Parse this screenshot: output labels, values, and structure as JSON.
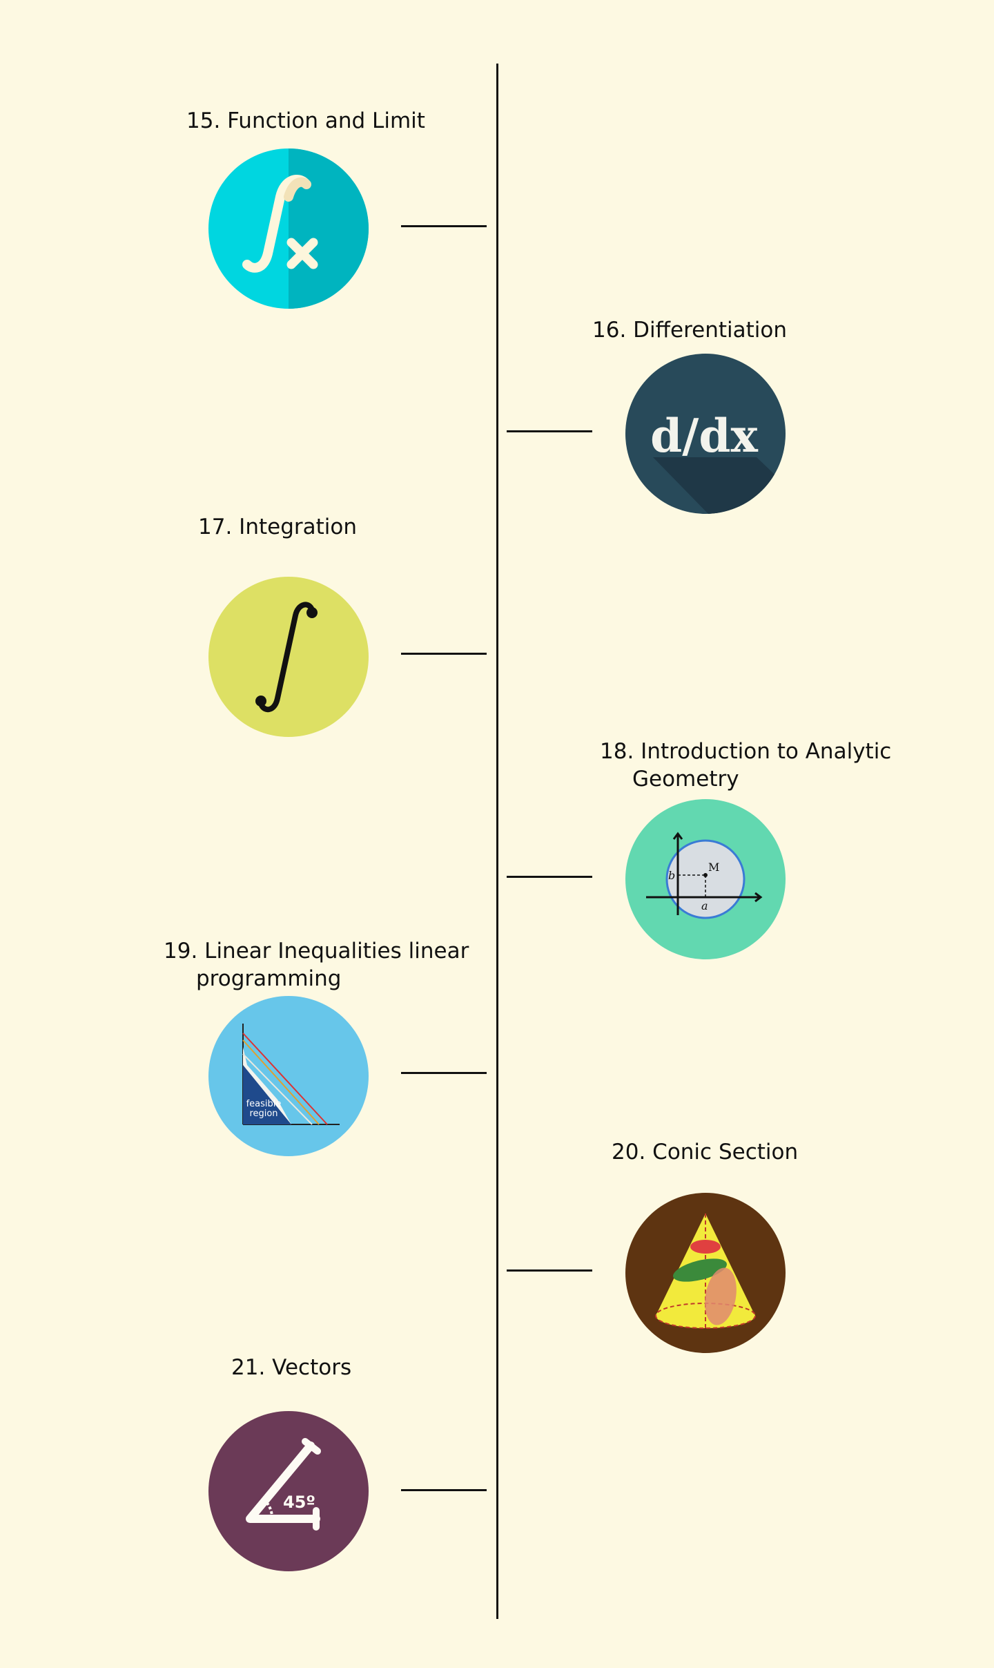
{
  "timeline": {
    "items": [
      {
        "number": "15.",
        "title": "Function and Limit",
        "icon": "function-integral-icon",
        "color": "#00d6e0",
        "side": "left"
      },
      {
        "number": "16.",
        "title": "Differentiation",
        "icon": "derivative-icon",
        "icon_text": "d/dx",
        "color": "#284a5a",
        "side": "right"
      },
      {
        "number": "17.",
        "title": "Integration",
        "icon": "integral-icon",
        "color": "#dde064",
        "side": "left"
      },
      {
        "number": "18.",
        "title": "Introduction to Analytic",
        "title_cont": "Geometry",
        "icon": "circle-graph-icon",
        "icon_text": "M",
        "icon_text_b": "b",
        "icon_text_a": "a",
        "color": "#62d8b0",
        "side": "right"
      },
      {
        "number": "19.",
        "title": "Linear Inequalities linear",
        "title_cont": "programming",
        "icon": "feasible-region-icon",
        "icon_text": "feasible",
        "icon_text_2": "region",
        "color": "#67c6ea",
        "side": "left"
      },
      {
        "number": "20.",
        "title": "Conic Section",
        "icon": "cone-icon",
        "color": "#5e3411",
        "side": "right"
      },
      {
        "number": "21.",
        "title": "Vectors",
        "icon": "angle-icon",
        "icon_text": "45º",
        "color": "#6b3a57",
        "side": "left"
      }
    ]
  }
}
